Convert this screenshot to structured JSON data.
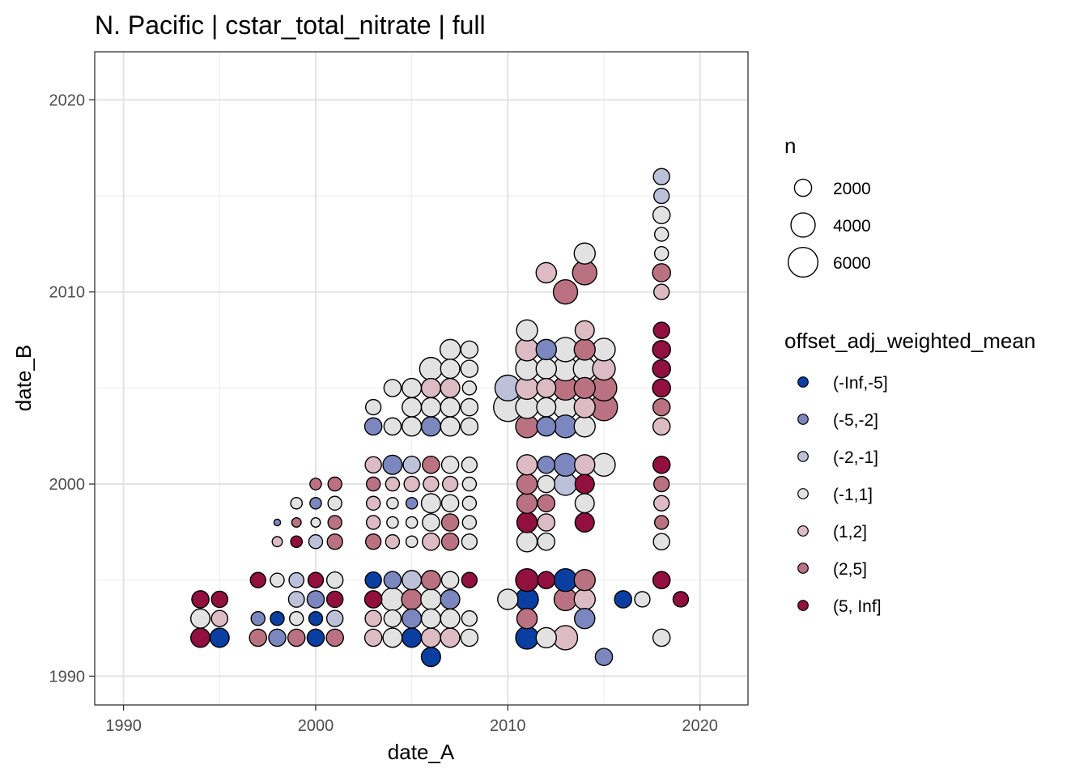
{
  "chart_data": {
    "type": "scatter",
    "title": "N. Pacific | cstar_total_nitrate | full",
    "xlabel": "date_A",
    "ylabel": "date_B",
    "xlim": [
      1988.5,
      2022.5
    ],
    "ylim": [
      1988.5,
      2022.5
    ],
    "x_ticks": [
      1990,
      2000,
      2010,
      2020
    ],
    "y_ticks": [
      1990,
      2000,
      2010,
      2020
    ],
    "x_tick_labels": [
      "1990",
      "2000",
      "2010",
      "2020"
    ],
    "y_tick_labels": [
      "1990",
      "2000",
      "2010",
      "2020"
    ],
    "grid": true,
    "size_legend": {
      "title": "n",
      "entries": [
        {
          "value": 2000,
          "label": "2000"
        },
        {
          "value": 4000,
          "label": "4000"
        },
        {
          "value": 6000,
          "label": "6000"
        }
      ]
    },
    "color_legend": {
      "title": "offset_adj_weighted_mean",
      "bins": [
        {
          "label": "(-Inf,-5]",
          "color": "#0A3FA1"
        },
        {
          "label": "(-5,-2]",
          "color": "#7C87C0"
        },
        {
          "label": "(-2,-1]",
          "color": "#BDC0D9"
        },
        {
          "label": "(-1,1]",
          "color": "#E2E2E2"
        },
        {
          "label": "(1,2]",
          "color": "#DCBBC4"
        },
        {
          "label": "(2,5]",
          "color": "#BA7282"
        },
        {
          "label": "(5, Inf]",
          "color": "#91103D"
        }
      ]
    },
    "points_columns": [
      "date_A",
      "date_B",
      "bin_index",
      "n"
    ],
    "points": [
      [
        1994,
        1992,
        6,
        2500
      ],
      [
        1994,
        1993,
        3,
        2500
      ],
      [
        1994,
        1994,
        6,
        2000
      ],
      [
        1995,
        1992,
        0,
        2500
      ],
      [
        1995,
        1993,
        4,
        1800
      ],
      [
        1995,
        1994,
        6,
        1800
      ],
      [
        1997,
        1992,
        5,
        2000
      ],
      [
        1997,
        1993,
        1,
        1300
      ],
      [
        1997,
        1995,
        6,
        1600
      ],
      [
        1998,
        1992,
        1,
        2000
      ],
      [
        1998,
        1993,
        0,
        1300
      ],
      [
        1998,
        1995,
        3,
        1300
      ],
      [
        1998,
        1997,
        4,
        700
      ],
      [
        1998,
        1998,
        1,
        300
      ],
      [
        1999,
        1992,
        5,
        2000
      ],
      [
        1999,
        1993,
        3,
        1300
      ],
      [
        1999,
        1994,
        2,
        1700
      ],
      [
        1999,
        1995,
        2,
        1500
      ],
      [
        1999,
        1997,
        6,
        900
      ],
      [
        1999,
        1998,
        5,
        600
      ],
      [
        1999,
        1999,
        3,
        900
      ],
      [
        2000,
        1992,
        0,
        2000
      ],
      [
        2000,
        1993,
        0,
        1300
      ],
      [
        2000,
        1994,
        1,
        2000
      ],
      [
        2000,
        1995,
        6,
        1600
      ],
      [
        2000,
        1997,
        2,
        1300
      ],
      [
        2000,
        1998,
        3,
        600
      ],
      [
        2000,
        1999,
        1,
        900
      ],
      [
        2000,
        2000,
        5,
        900
      ],
      [
        2001,
        1992,
        5,
        2000
      ],
      [
        2001,
        1993,
        2,
        1800
      ],
      [
        2001,
        1994,
        6,
        1800
      ],
      [
        2001,
        1995,
        3,
        1800
      ],
      [
        2001,
        1997,
        5,
        1600
      ],
      [
        2001,
        1998,
        5,
        1300
      ],
      [
        2001,
        1999,
        3,
        1300
      ],
      [
        2001,
        2000,
        5,
        1300
      ],
      [
        2003,
        1992,
        4,
        2000
      ],
      [
        2003,
        1993,
        4,
        1800
      ],
      [
        2003,
        1994,
        6,
        2000
      ],
      [
        2003,
        1995,
        0,
        1800
      ],
      [
        2003,
        1997,
        5,
        1600
      ],
      [
        2003,
        1998,
        4,
        1300
      ],
      [
        2003,
        1999,
        4,
        1300
      ],
      [
        2003,
        2000,
        5,
        1300
      ],
      [
        2003,
        2001,
        4,
        1800
      ],
      [
        2003,
        2003,
        1,
        2000
      ],
      [
        2003,
        2004,
        3,
        1600
      ],
      [
        2004,
        1992,
        3,
        2500
      ],
      [
        2004,
        1993,
        3,
        2000
      ],
      [
        2004,
        1994,
        3,
        3500
      ],
      [
        2004,
        1995,
        1,
        2000
      ],
      [
        2004,
        1997,
        4,
        1300
      ],
      [
        2004,
        1998,
        3,
        900
      ],
      [
        2004,
        1999,
        3,
        900
      ],
      [
        2004,
        2000,
        4,
        1300
      ],
      [
        2004,
        2001,
        1,
        2500
      ],
      [
        2004,
        2003,
        3,
        2000
      ],
      [
        2004,
        2005,
        3,
        2000
      ],
      [
        2005,
        1992,
        0,
        2500
      ],
      [
        2005,
        1993,
        1,
        2500
      ],
      [
        2005,
        1994,
        5,
        2800
      ],
      [
        2005,
        1995,
        2,
        2500
      ],
      [
        2005,
        1997,
        3,
        900
      ],
      [
        2005,
        1998,
        3,
        900
      ],
      [
        2005,
        1999,
        1,
        900
      ],
      [
        2005,
        2000,
        4,
        1600
      ],
      [
        2005,
        2001,
        2,
        2000
      ],
      [
        2005,
        2003,
        3,
        2500
      ],
      [
        2005,
        2004,
        3,
        2500
      ],
      [
        2005,
        2005,
        3,
        2500
      ],
      [
        2006,
        1991,
        0,
        2500
      ],
      [
        2006,
        1992,
        4,
        2500
      ],
      [
        2006,
        1993,
        3,
        2500
      ],
      [
        2006,
        1994,
        3,
        2800
      ],
      [
        2006,
        1995,
        5,
        2500
      ],
      [
        2006,
        1997,
        4,
        2000
      ],
      [
        2006,
        1998,
        3,
        2000
      ],
      [
        2006,
        1999,
        3,
        2500
      ],
      [
        2006,
        2000,
        4,
        1600
      ],
      [
        2006,
        2001,
        5,
        2000
      ],
      [
        2006,
        2003,
        1,
        2500
      ],
      [
        2006,
        2004,
        3,
        2500
      ],
      [
        2006,
        2005,
        4,
        2500
      ],
      [
        2006,
        2006,
        3,
        3500
      ],
      [
        2007,
        1992,
        4,
        2500
      ],
      [
        2007,
        1993,
        3,
        2500
      ],
      [
        2007,
        1994,
        1,
        2500
      ],
      [
        2007,
        1995,
        3,
        2000
      ],
      [
        2007,
        1997,
        5,
        2000
      ],
      [
        2007,
        1998,
        5,
        2000
      ],
      [
        2007,
        1999,
        3,
        2000
      ],
      [
        2007,
        2000,
        4,
        1600
      ],
      [
        2007,
        2001,
        3,
        2000
      ],
      [
        2007,
        2003,
        3,
        2500
      ],
      [
        2007,
        2004,
        3,
        2500
      ],
      [
        2007,
        2005,
        4,
        2500
      ],
      [
        2007,
        2006,
        3,
        2500
      ],
      [
        2007,
        2007,
        3,
        2800
      ],
      [
        2008,
        1992,
        3,
        2000
      ],
      [
        2008,
        1993,
        3,
        1600
      ],
      [
        2008,
        1995,
        6,
        1600
      ],
      [
        2008,
        1997,
        3,
        1600
      ],
      [
        2008,
        1998,
        3,
        1300
      ],
      [
        2008,
        1999,
        3,
        1300
      ],
      [
        2008,
        2000,
        3,
        1300
      ],
      [
        2008,
        2001,
        3,
        1600
      ],
      [
        2008,
        2003,
        3,
        2000
      ],
      [
        2008,
        2004,
        3,
        2000
      ],
      [
        2008,
        2005,
        3,
        1300
      ],
      [
        2008,
        2006,
        3,
        2000
      ],
      [
        2008,
        2007,
        3,
        2000
      ],
      [
        2010,
        1994,
        3,
        2800
      ],
      [
        2010,
        2004,
        3,
        5500
      ],
      [
        2010,
        2005,
        2,
        4500
      ],
      [
        2011,
        1992,
        0,
        3500
      ],
      [
        2011,
        1993,
        5,
        2800
      ],
      [
        2011,
        1994,
        0,
        3500
      ],
      [
        2011,
        1995,
        6,
        3500
      ],
      [
        2011,
        1997,
        3,
        2800
      ],
      [
        2011,
        1998,
        6,
        2800
      ],
      [
        2011,
        1999,
        5,
        2800
      ],
      [
        2011,
        2000,
        5,
        2800
      ],
      [
        2011,
        2001,
        4,
        2800
      ],
      [
        2011,
        2003,
        5,
        3500
      ],
      [
        2011,
        2004,
        3,
        3500
      ],
      [
        2011,
        2005,
        4,
        3500
      ],
      [
        2011,
        2006,
        3,
        3500
      ],
      [
        2011,
        2007,
        4,
        3500
      ],
      [
        2011,
        2008,
        3,
        3000
      ],
      [
        2012,
        1992,
        3,
        2800
      ],
      [
        2012,
        1995,
        6,
        2000
      ],
      [
        2012,
        1997,
        3,
        2000
      ],
      [
        2012,
        1998,
        4,
        2000
      ],
      [
        2012,
        1999,
        5,
        2000
      ],
      [
        2012,
        2000,
        3,
        2000
      ],
      [
        2012,
        2001,
        1,
        2000
      ],
      [
        2012,
        2003,
        1,
        2500
      ],
      [
        2012,
        2004,
        3,
        2500
      ],
      [
        2012,
        2005,
        4,
        2500
      ],
      [
        2012,
        2006,
        3,
        2800
      ],
      [
        2012,
        2007,
        1,
        2800
      ],
      [
        2012,
        2011,
        4,
        2800
      ],
      [
        2013,
        1992,
        4,
        4000
      ],
      [
        2013,
        1994,
        5,
        3500
      ],
      [
        2013,
        1995,
        0,
        3500
      ],
      [
        2013,
        2000,
        2,
        3500
      ],
      [
        2013,
        2001,
        1,
        3500
      ],
      [
        2013,
        2003,
        1,
        3500
      ],
      [
        2013,
        2004,
        3,
        4000
      ],
      [
        2013,
        2005,
        5,
        4000
      ],
      [
        2013,
        2006,
        3,
        4000
      ],
      [
        2013,
        2007,
        3,
        4000
      ],
      [
        2013,
        2010,
        5,
        4000
      ],
      [
        2014,
        1993,
        1,
        2800
      ],
      [
        2014,
        1994,
        4,
        3000
      ],
      [
        2014,
        1995,
        5,
        3000
      ],
      [
        2014,
        1998,
        6,
        2500
      ],
      [
        2014,
        1999,
        3,
        2500
      ],
      [
        2014,
        2000,
        6,
        2500
      ],
      [
        2014,
        2001,
        4,
        2800
      ],
      [
        2014,
        2003,
        3,
        3000
      ],
      [
        2014,
        2004,
        4,
        3000
      ],
      [
        2014,
        2005,
        5,
        3000
      ],
      [
        2014,
        2006,
        3,
        3500
      ],
      [
        2014,
        2007,
        5,
        3000
      ],
      [
        2014,
        2008,
        4,
        2500
      ],
      [
        2014,
        2011,
        5,
        4000
      ],
      [
        2014,
        2012,
        3,
        3000
      ],
      [
        2015,
        1991,
        1,
        2000
      ],
      [
        2015,
        2001,
        3,
        3500
      ],
      [
        2015,
        2004,
        5,
        5000
      ],
      [
        2015,
        2005,
        5,
        4500
      ],
      [
        2015,
        2006,
        4,
        3500
      ],
      [
        2015,
        2007,
        3,
        3500
      ],
      [
        2016,
        1994,
        0,
        2000
      ],
      [
        2017,
        1994,
        3,
        1600
      ],
      [
        2018,
        1992,
        3,
        2000
      ],
      [
        2018,
        1995,
        6,
        2000
      ],
      [
        2018,
        1997,
        3,
        1800
      ],
      [
        2018,
        1998,
        5,
        1300
      ],
      [
        2018,
        1999,
        4,
        1600
      ],
      [
        2018,
        2000,
        5,
        1600
      ],
      [
        2018,
        2001,
        6,
        2000
      ],
      [
        2018,
        2003,
        4,
        2000
      ],
      [
        2018,
        2004,
        5,
        2000
      ],
      [
        2018,
        2005,
        6,
        2200
      ],
      [
        2018,
        2006,
        6,
        2200
      ],
      [
        2018,
        2007,
        6,
        2200
      ],
      [
        2018,
        2008,
        6,
        1800
      ],
      [
        2018,
        2010,
        4,
        1600
      ],
      [
        2018,
        2011,
        5,
        2200
      ],
      [
        2018,
        2012,
        3,
        1300
      ],
      [
        2018,
        2013,
        3,
        1300
      ],
      [
        2018,
        2014,
        3,
        2000
      ],
      [
        2018,
        2015,
        2,
        1600
      ],
      [
        2018,
        2016,
        2,
        1800
      ],
      [
        2019,
        1994,
        6,
        1600
      ]
    ]
  }
}
